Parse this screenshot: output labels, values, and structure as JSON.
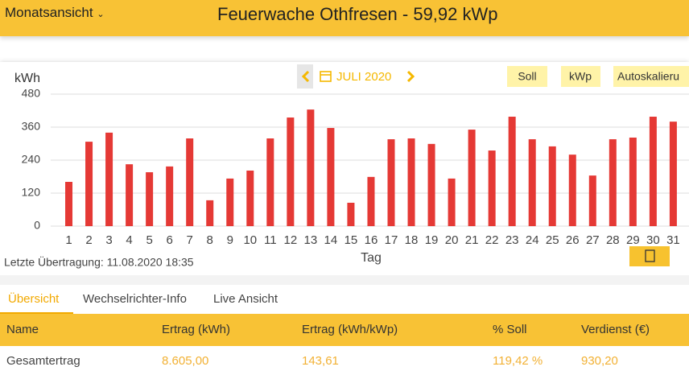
{
  "header": {
    "view": "Monatsansicht",
    "title": "Feuerwache Othfresen - 59,92 kWp"
  },
  "chart_data": {
    "type": "bar",
    "y_label": "kWh",
    "x_label": "Tag",
    "period": "JULI 2020",
    "buttons": [
      "Soll",
      "kWp",
      "Autoskalieru"
    ],
    "categories": [
      "1",
      "2",
      "3",
      "4",
      "5",
      "6",
      "7",
      "8",
      "9",
      "10",
      "11",
      "12",
      "13",
      "14",
      "15",
      "16",
      "17",
      "18",
      "19",
      "20",
      "21",
      "22",
      "23",
      "24",
      "25",
      "26",
      "27",
      "28",
      "29",
      "30",
      "31"
    ],
    "values": [
      161,
      307,
      340,
      225,
      196,
      217,
      319,
      94,
      173,
      202,
      319,
      395,
      424,
      357,
      85,
      179,
      316,
      319,
      299,
      173,
      351,
      275,
      398,
      316,
      290,
      260,
      184,
      316,
      322,
      398,
      380
    ],
    "color": "#e53935",
    "ylim": [
      0,
      480
    ],
    "yticks": [
      0,
      120,
      240,
      360,
      480
    ],
    "grid": true
  },
  "last_transfer": "Letzte Übertragung: 11.08.2020 18:35",
  "tabs": [
    "Übersicht",
    "Wechselrichter-Info",
    "Live Ansicht"
  ],
  "table": {
    "columns": [
      "Name",
      "Ertrag (kWh)",
      "Ertrag (kWh/kWp)",
      "% Soll",
      "Verdienst (€)"
    ],
    "rows": [
      [
        "Gesamtertrag",
        "8.605,00",
        "143,61",
        "119,42 %",
        "930,20"
      ]
    ]
  }
}
